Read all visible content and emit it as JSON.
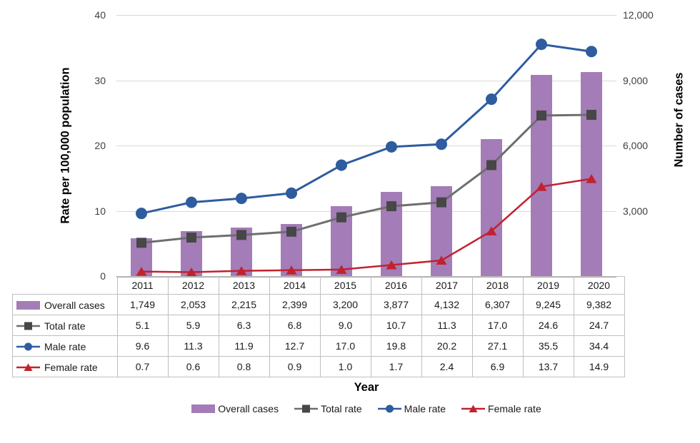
{
  "chart_data": {
    "type": "combo-bar-line",
    "categories": [
      "2011",
      "2012",
      "2013",
      "2014",
      "2015",
      "2016",
      "2017",
      "2018",
      "2019",
      "2020"
    ],
    "series": [
      {
        "name": "Overall cases",
        "type": "bar",
        "axis": "right",
        "color": "#a47cb8",
        "values": [
          1749,
          2053,
          2215,
          2399,
          3200,
          3877,
          4132,
          6307,
          9245,
          9382
        ],
        "display": [
          "1,749",
          "2,053",
          "2,215",
          "2,399",
          "3,200",
          "3,877",
          "4,132",
          "6,307",
          "9,245",
          "9,382"
        ]
      },
      {
        "name": "Total rate",
        "type": "line",
        "marker": "square",
        "axis": "left",
        "color": "#6e6e6e",
        "marker_color": "#474747",
        "values": [
          5.1,
          5.9,
          6.3,
          6.8,
          9.0,
          10.7,
          11.3,
          17.0,
          24.6,
          24.7
        ],
        "display": [
          "5.1",
          "5.9",
          "6.3",
          "6.8",
          "9.0",
          "10.7",
          "11.3",
          "17.0",
          "24.6",
          "24.7"
        ]
      },
      {
        "name": "Male rate",
        "type": "line",
        "marker": "circle",
        "axis": "left",
        "color": "#2e5c9f",
        "marker_color": "#2e5c9f",
        "values": [
          9.6,
          11.3,
          11.9,
          12.7,
          17.0,
          19.8,
          20.2,
          27.1,
          35.5,
          34.4
        ],
        "display": [
          "9.6",
          "11.3",
          "11.9",
          "12.7",
          "17.0",
          "19.8",
          "20.2",
          "27.1",
          "35.5",
          "34.4"
        ]
      },
      {
        "name": "Female rate",
        "type": "line",
        "marker": "triangle",
        "axis": "left",
        "color": "#c1222f",
        "marker_color": "#c1222f",
        "values": [
          0.7,
          0.6,
          0.8,
          0.9,
          1.0,
          1.7,
          2.4,
          6.9,
          13.7,
          14.9
        ],
        "display": [
          "0.7",
          "0.6",
          "0.8",
          "0.9",
          "1.0",
          "1.7",
          "2.4",
          "6.9",
          "13.7",
          "14.9"
        ]
      }
    ],
    "left_axis": {
      "title": "Rate per 100,000 population",
      "max": 40,
      "ticks": [
        {
          "v": 0,
          "label": "0"
        },
        {
          "v": 10,
          "label": "10"
        },
        {
          "v": 20,
          "label": "20"
        },
        {
          "v": 30,
          "label": "30"
        },
        {
          "v": 40,
          "label": "40"
        }
      ]
    },
    "right_axis": {
      "title": "Number of cases",
      "max": 12000,
      "ticks": [
        {
          "v": 3000,
          "label": "3,000"
        },
        {
          "v": 6000,
          "label": "6,000"
        },
        {
          "v": 9000,
          "label": "9,000"
        },
        {
          "v": 12000,
          "label": "12,000"
        }
      ]
    },
    "x_axis": {
      "title": "Year"
    },
    "legend": [
      "Overall cases",
      "Total rate",
      "Male rate",
      "Female rate"
    ],
    "colors": {
      "grid": "#d9d9d9",
      "axis_line": "#a6a6a6",
      "table_border": "#bfbfbf",
      "text": "#1a1a1a"
    },
    "layout_hints": {
      "grid": "horizontal-on",
      "legend_position": "bottom",
      "table": "attached-data-table"
    }
  }
}
